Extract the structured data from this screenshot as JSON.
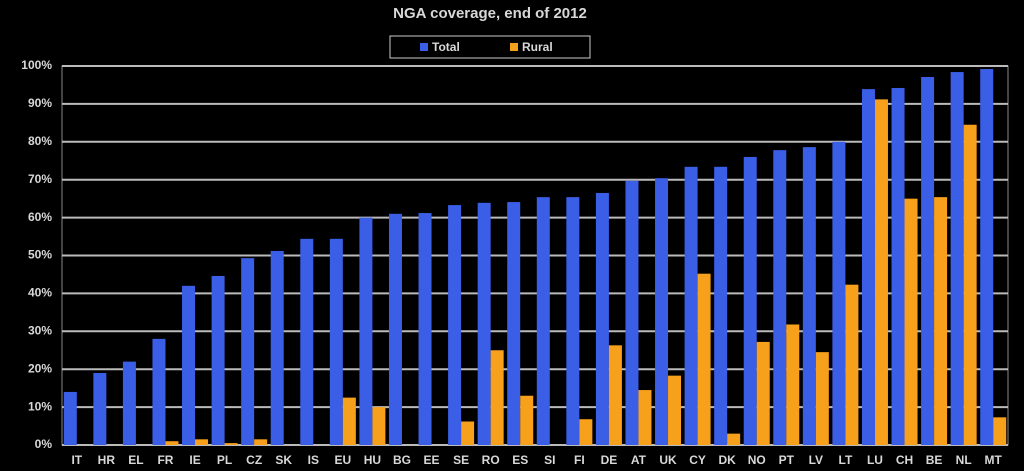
{
  "chart_data": {
    "type": "bar",
    "title": "NGA coverage, end of 2012",
    "categories": [
      "IT",
      "HR",
      "EL",
      "FR",
      "IE",
      "PL",
      "CZ",
      "SK",
      "IS",
      "EU",
      "HU",
      "BG",
      "EE",
      "SE",
      "RO",
      "ES",
      "SI",
      "FI",
      "DE",
      "AT",
      "UK",
      "CY",
      "DK",
      "NO",
      "PT",
      "LV",
      "LT",
      "LU",
      "CH",
      "BE",
      "NL",
      "MT"
    ],
    "series": [
      {
        "name": "Total",
        "color": "#3b5ee6",
        "values": [
          14,
          19,
          22,
          28,
          42,
          44.6,
          49.3,
          51.2,
          54.4,
          54.4,
          60,
          61,
          61.2,
          63.3,
          63.9,
          64.1,
          65.4,
          65.4,
          66.5,
          69.7,
          70.4,
          73.4,
          73.4,
          76,
          77.8,
          78.6,
          80,
          93.9,
          94.2,
          97.1,
          98.4,
          99.2
        ]
      },
      {
        "name": "Rural",
        "color": "#f7a01c",
        "values": [
          0,
          0,
          0,
          1,
          1.5,
          0.5,
          1.5,
          0,
          0,
          12.5,
          10,
          0,
          0,
          6.2,
          25,
          13,
          0,
          6.8,
          26.3,
          14.5,
          18.3,
          45.2,
          3,
          27.2,
          31.8,
          24.5,
          42.3,
          91.2,
          65,
          65.4,
          84.5,
          7.3
        ]
      }
    ],
    "ylim": [
      0,
      100
    ],
    "yticks": [
      {
        "value": 0,
        "label": "0%"
      },
      {
        "value": 10,
        "label": "10%"
      },
      {
        "value": 20,
        "label": "20%"
      },
      {
        "value": 30,
        "label": "30%"
      },
      {
        "value": 40,
        "label": "40%"
      },
      {
        "value": 50,
        "label": "50%"
      },
      {
        "value": 60,
        "label": "60%"
      },
      {
        "value": 70,
        "label": "70%"
      },
      {
        "value": 80,
        "label": "80%"
      },
      {
        "value": 90,
        "label": "90%"
      },
      {
        "value": 100,
        "label": "100%"
      }
    ],
    "grid": true,
    "legend": "top"
  }
}
